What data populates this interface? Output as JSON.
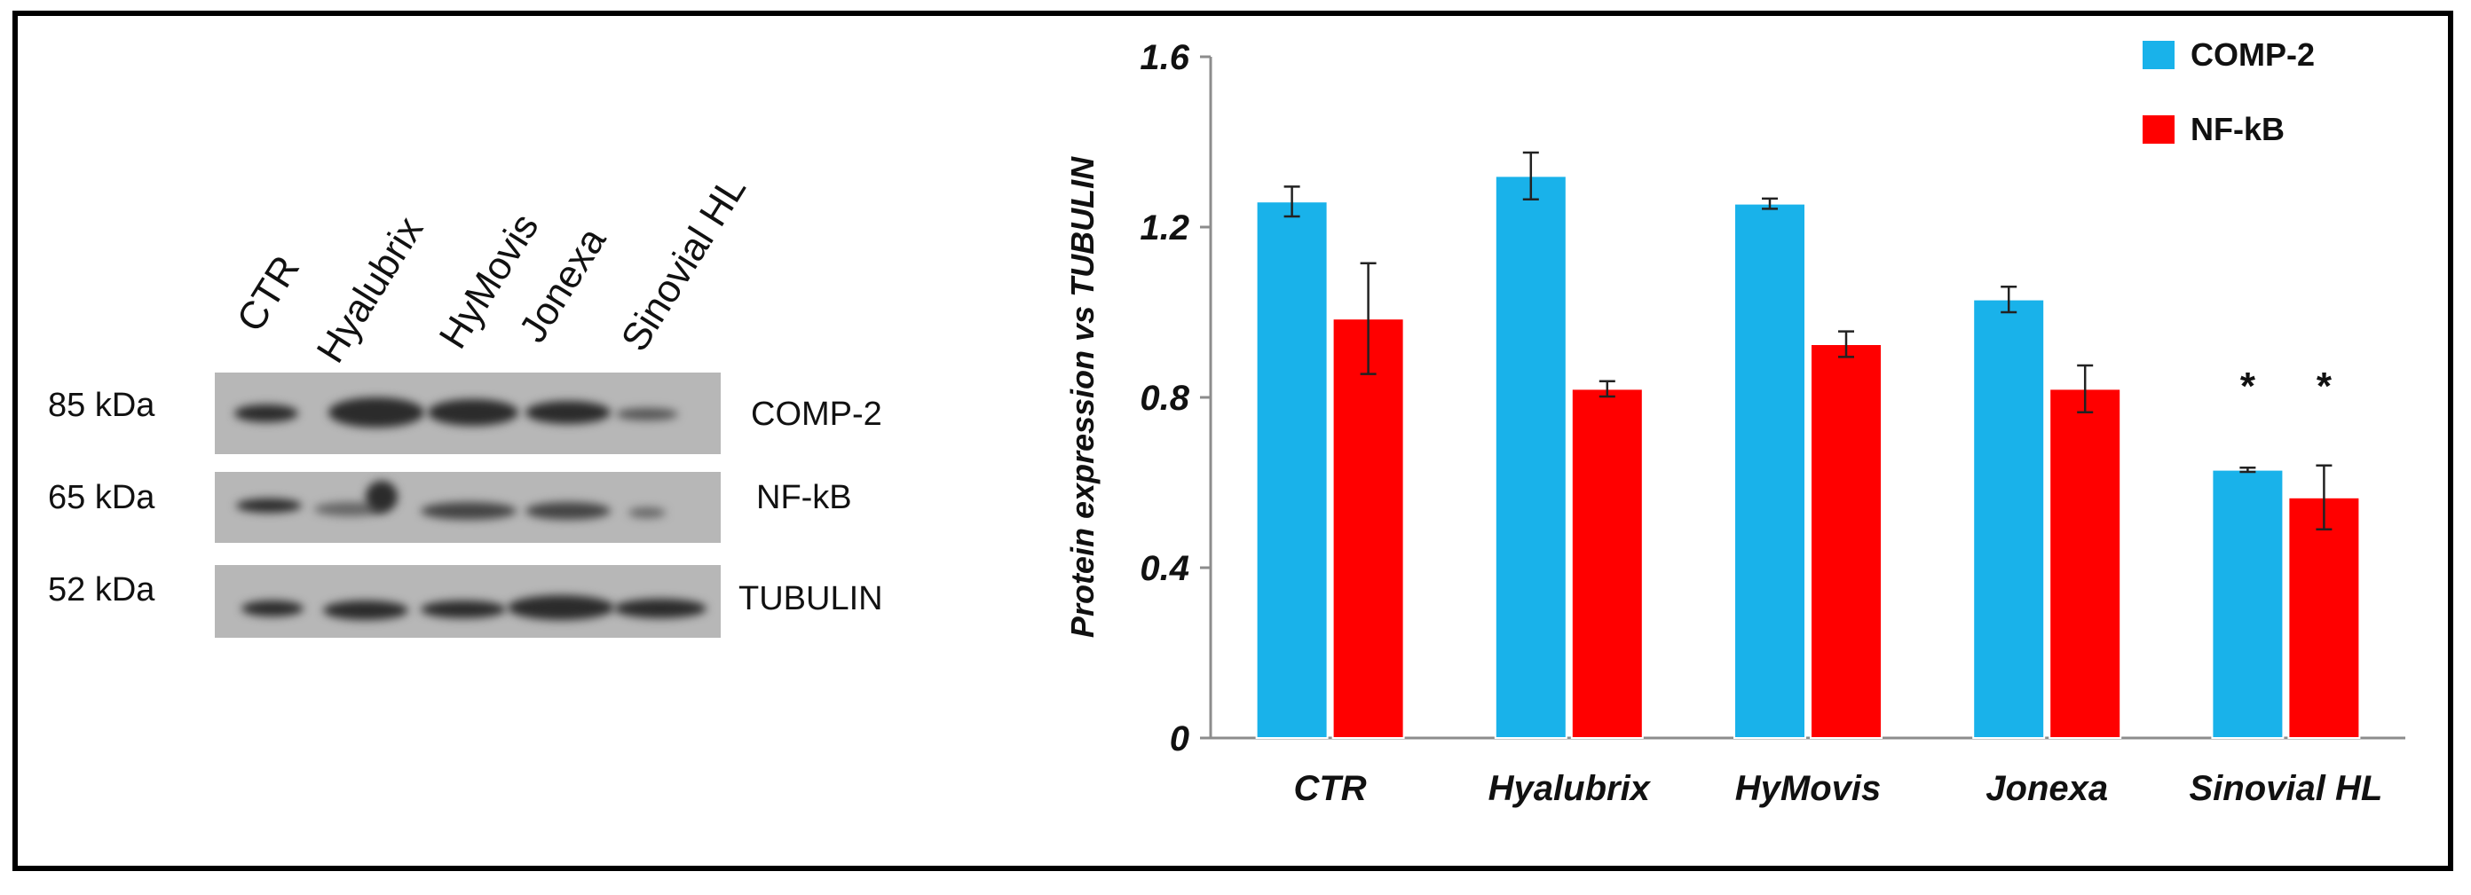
{
  "blot": {
    "lanes": [
      "CTR",
      "Hyalubrix",
      "HyMovis",
      "Jonexa",
      "Sinovial HL"
    ],
    "rows": [
      {
        "kda": "85 kDa",
        "protein": "COMP-2"
      },
      {
        "kda": "65 kDa",
        "protein": "NF-kB"
      },
      {
        "kda": "52 kDa",
        "protein": "TUBULIN"
      }
    ]
  },
  "chart_data": {
    "type": "bar",
    "title": "",
    "xlabel": "",
    "ylabel": "Protein expression vs TUBULIN",
    "ylim": [
      0,
      1.6
    ],
    "yticks": [
      0,
      0.4,
      0.8,
      1.2,
      1.6
    ],
    "ytick_labels": [
      "0",
      "0.4",
      "0.8",
      "1.2",
      "1.6"
    ],
    "categories": [
      "CTR",
      "Hyalubrix",
      "HyMovis",
      "Jonexa",
      "Sinovial HL"
    ],
    "series": [
      {
        "name": "COMP-2",
        "color": "#19b2ea",
        "values": [
          1.26,
          1.32,
          1.255,
          1.03,
          0.63
        ],
        "errors": [
          0.035,
          0.055,
          0.012,
          0.03,
          0.005
        ],
        "annotations": [
          "",
          "",
          "",
          "",
          "*"
        ]
      },
      {
        "name": "NF-kB",
        "color": "#ff0000",
        "values": [
          0.985,
          0.82,
          0.925,
          0.82,
          0.565
        ],
        "errors": [
          0.13,
          0.018,
          0.03,
          0.055,
          0.075
        ],
        "annotations": [
          "",
          "",
          "",
          "",
          "*"
        ]
      }
    ],
    "legend_position": "top-right"
  }
}
